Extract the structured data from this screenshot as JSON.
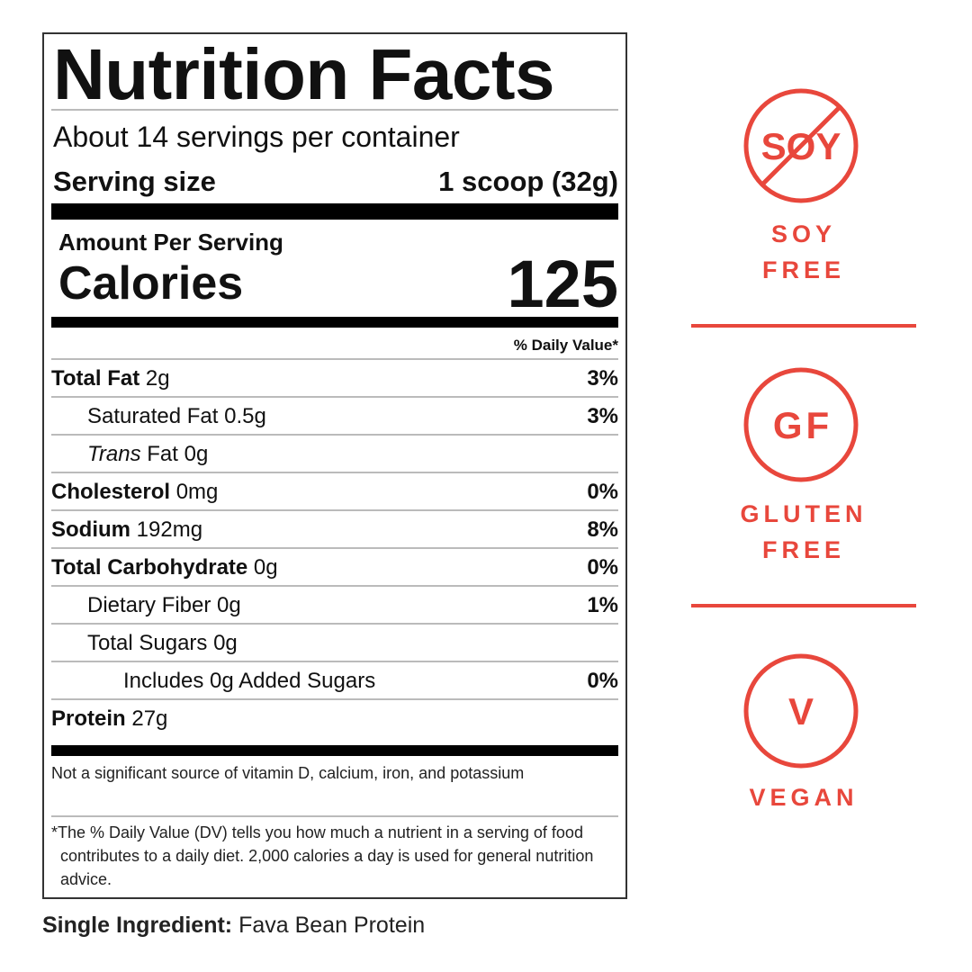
{
  "label": {
    "title": "Nutrition Facts",
    "servings_per_container": "About 14 servings per container",
    "serving_size_label": "Serving size",
    "serving_size_value": "1 scoop (32g)",
    "amount_per_serving": "Amount Per Serving",
    "calories_label": "Calories",
    "calories_value": "125",
    "daily_value_header": "% Daily Value*",
    "nutrients": [
      {
        "name": "Total Fat",
        "amount": "2g",
        "dv": "3%",
        "bold": true,
        "indent": 0
      },
      {
        "name": "Saturated Fat",
        "amount": "0.5g",
        "dv": "3%",
        "bold": false,
        "indent": 1
      },
      {
        "name": "Trans",
        "name_suffix": "Fat",
        "amount": "0g",
        "dv": "",
        "bold": false,
        "indent": 1,
        "italic": true
      },
      {
        "name": "Cholesterol",
        "amount": "0mg",
        "dv": "0%",
        "bold": true,
        "indent": 0
      },
      {
        "name": "Sodium",
        "amount": "192mg",
        "dv": "8%",
        "bold": true,
        "indent": 0
      },
      {
        "name": "Total Carbohydrate",
        "amount": "0g",
        "dv": "0%",
        "bold": true,
        "indent": 0
      },
      {
        "name": "Dietary Fiber",
        "amount": "0g",
        "dv": "1%",
        "bold": false,
        "indent": 1
      },
      {
        "name": "Total Sugars",
        "amount": "0g",
        "dv": "",
        "bold": false,
        "indent": 1
      },
      {
        "name": "Includes 0g Added Sugars",
        "amount": "",
        "dv": "0%",
        "bold": false,
        "indent": 2
      },
      {
        "name": "Protein",
        "amount": "27g",
        "dv": "",
        "bold": true,
        "indent": 0
      }
    ],
    "not_significant": "Not a significant source of vitamin D, calcium, iron, and potassium",
    "footnote": "*The % Daily Value (DV) tells you how much a nutrient in a serving of food contributes to a daily diet. 2,000 calories a day is used for general nutrition advice."
  },
  "ingredient": {
    "label": "Single Ingredient:",
    "value": "Fava Bean Protein"
  },
  "badges": {
    "accent_color": "#e8473c",
    "soy": {
      "icon": "no-soy-icon",
      "icon_text": "SOY",
      "line1": "SOY",
      "line2": "FREE"
    },
    "gluten": {
      "icon": "gluten-free-icon",
      "icon_text": "GF",
      "line1": "GLUTEN",
      "line2": "FREE"
    },
    "vegan": {
      "icon": "vegan-icon",
      "icon_text": "V",
      "line1": "VEGAN"
    }
  }
}
